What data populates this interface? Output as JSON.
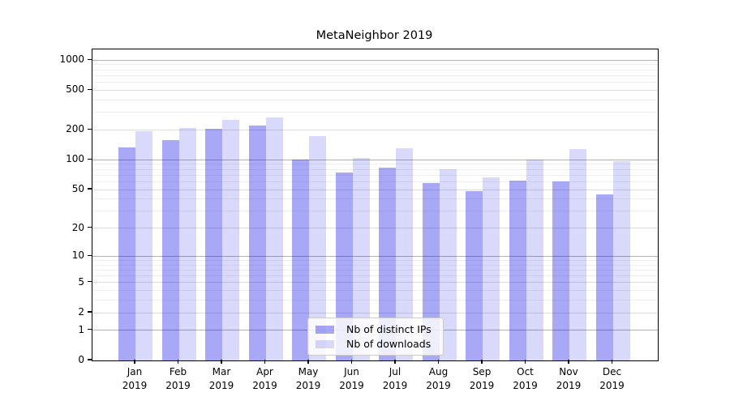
{
  "chart_data": {
    "type": "bar",
    "title": "MetaNeighbor 2019",
    "x_categories": [
      {
        "month": "Jan",
        "year": "2019"
      },
      {
        "month": "Feb",
        "year": "2019"
      },
      {
        "month": "Mar",
        "year": "2019"
      },
      {
        "month": "Apr",
        "year": "2019"
      },
      {
        "month": "May",
        "year": "2019"
      },
      {
        "month": "Jun",
        "year": "2019"
      },
      {
        "month": "Jul",
        "year": "2019"
      },
      {
        "month": "Aug",
        "year": "2019"
      },
      {
        "month": "Sep",
        "year": "2019"
      },
      {
        "month": "Oct",
        "year": "2019"
      },
      {
        "month": "Nov",
        "year": "2019"
      },
      {
        "month": "Dec",
        "year": "2019"
      }
    ],
    "series": [
      {
        "name": "Nb of distinct IPs",
        "color": "rgba(0,0,230,0.34)",
        "values": [
          134,
          159,
          204,
          221,
          101,
          74,
          84,
          58,
          48,
          62,
          61,
          45
        ]
      },
      {
        "name": "Nb of downloads",
        "color": "rgba(0,0,230,0.15)",
        "values": [
          193,
          211,
          254,
          266,
          175,
          104,
          132,
          81,
          67,
          100,
          129,
          97
        ]
      }
    ],
    "y_axis": {
      "scale": "symlog",
      "tick_values": [
        0,
        1,
        2,
        5,
        10,
        20,
        50,
        100,
        200,
        500,
        1000
      ],
      "tick_labels": [
        "0",
        "1",
        "2",
        "5",
        "10",
        "20",
        "50",
        "100",
        "200",
        "500",
        "1000"
      ],
      "minor_gridline_values": [
        3,
        4,
        6,
        7,
        8,
        9,
        30,
        40,
        60,
        70,
        80,
        90,
        300,
        400,
        600,
        700,
        800,
        900
      ],
      "decade_values": [
        1,
        10,
        100,
        1000
      ],
      "ylim": [
        0,
        1150
      ]
    },
    "grid": true,
    "legend_position": "lower center",
    "colors": {
      "decade_gridline": "#b2b2b2",
      "major_gridline": "#dcdcdc",
      "minor_gridline": "#efefef",
      "axis": "#000000"
    }
  }
}
